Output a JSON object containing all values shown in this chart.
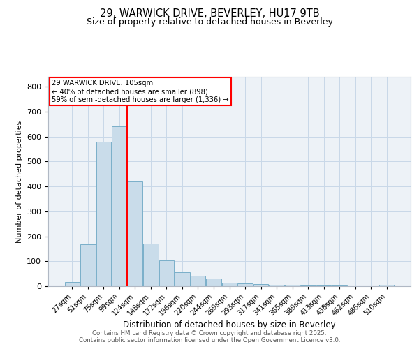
{
  "title_line1": "29, WARWICK DRIVE, BEVERLEY, HU17 9TB",
  "title_line2": "Size of property relative to detached houses in Beverley",
  "xlabel": "Distribution of detached houses by size in Beverley",
  "ylabel": "Number of detached properties",
  "categories": [
    "27sqm",
    "51sqm",
    "75sqm",
    "99sqm",
    "124sqm",
    "148sqm",
    "172sqm",
    "196sqm",
    "220sqm",
    "244sqm",
    "269sqm",
    "293sqm",
    "317sqm",
    "341sqm",
    "365sqm",
    "389sqm",
    "413sqm",
    "438sqm",
    "462sqm",
    "486sqm",
    "510sqm"
  ],
  "values": [
    18,
    168,
    580,
    640,
    420,
    170,
    105,
    57,
    42,
    32,
    14,
    10,
    9,
    7,
    5,
    3,
    2,
    2,
    1,
    1,
    5
  ],
  "bar_color": "#c9dcea",
  "bar_edgecolor": "#7aafc9",
  "grid_color": "#c8d8e8",
  "background_color": "#edf2f7",
  "vline_color": "red",
  "ylim": [
    0,
    840
  ],
  "yticks": [
    0,
    100,
    200,
    300,
    400,
    500,
    600,
    700,
    800
  ],
  "annotation_title": "29 WARWICK DRIVE: 105sqm",
  "annotation_line2": "← 40% of detached houses are smaller (898)",
  "annotation_line3": "59% of semi-detached houses are larger (1,336) →",
  "footer_line1": "Contains HM Land Registry data © Crown copyright and database right 2025.",
  "footer_line2": "Contains public sector information licensed under the Open Government Licence v3.0."
}
